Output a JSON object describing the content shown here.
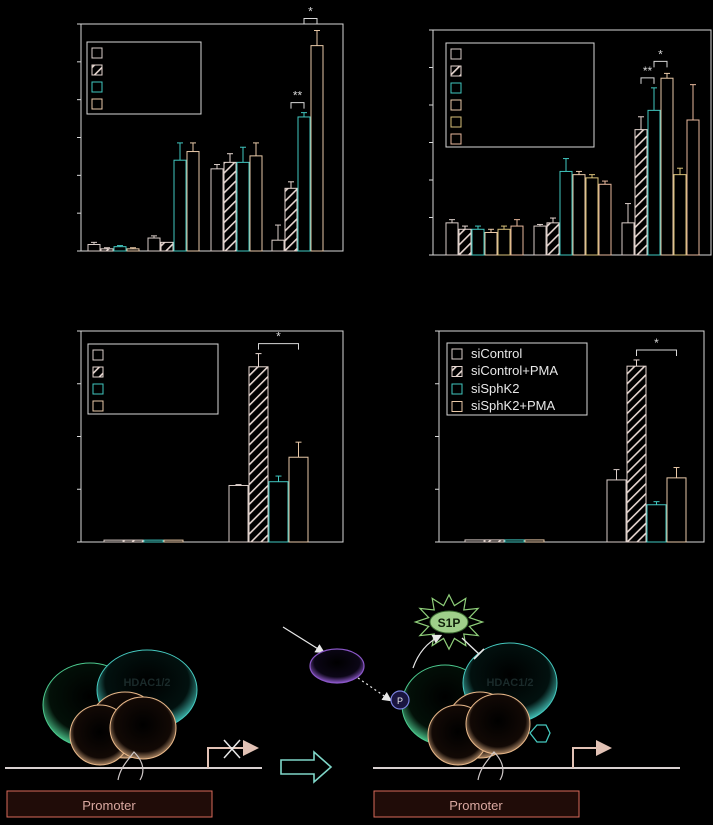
{
  "chart_data": [
    {
      "type": "bar",
      "groups": 4,
      "series": [
        {
          "values": [
            3,
            6,
            38,
            5
          ],
          "errors": [
            1,
            1,
            2,
            7
          ]
        },
        {
          "values": [
            1,
            4,
            41,
            29
          ],
          "errors": [
            0.5,
            0.3,
            4,
            3
          ]
        },
        {
          "values": [
            2,
            42,
            41,
            62
          ],
          "errors": [
            0.5,
            8,
            7,
            2
          ]
        },
        {
          "values": [
            1,
            46,
            44,
            95
          ],
          "errors": [
            0.5,
            4,
            6,
            7
          ]
        }
      ],
      "ylim": [
        0,
        105
      ],
      "significance": [
        {
          "label": "**",
          "from": [
            3,
            1
          ],
          "to": [
            3,
            2
          ]
        },
        {
          "label": "*",
          "from": [
            3,
            2
          ],
          "to": [
            3,
            3
          ]
        }
      ]
    },
    {
      "type": "bar",
      "groups": 3,
      "series": [
        {
          "values": [
            10,
            9,
            10
          ],
          "errors": [
            1,
            0.5,
            6
          ]
        },
        {
          "values": [
            8,
            10,
            39
          ],
          "errors": [
            1,
            1.5,
            4
          ]
        },
        {
          "values": [
            8,
            26,
            45
          ],
          "errors": [
            1,
            4,
            7
          ]
        },
        {
          "values": [
            7,
            25,
            55
          ],
          "errors": [
            1,
            1,
            1.5
          ]
        },
        {
          "values": [
            8,
            24,
            25
          ],
          "errors": [
            1,
            1,
            2
          ]
        },
        {
          "values": [
            9,
            22,
            42
          ],
          "errors": [
            2,
            1,
            11
          ]
        }
      ],
      "ylim": [
        0,
        70
      ],
      "significance": [
        {
          "label": "**",
          "from": [
            2,
            1
          ],
          "to": [
            2,
            2
          ]
        },
        {
          "label": "*",
          "from": [
            2,
            2
          ],
          "to": [
            2,
            3
          ]
        }
      ]
    },
    {
      "type": "bar",
      "groups": 2,
      "series": [
        {
          "values": [
            1,
            30
          ],
          "errors": [
            0.2,
            0.5
          ]
        },
        {
          "values": [
            1,
            93
          ],
          "errors": [
            0.2,
            7
          ]
        },
        {
          "values": [
            1,
            32
          ],
          "errors": [
            0.2,
            3
          ]
        },
        {
          "values": [
            1,
            45
          ],
          "errors": [
            0.2,
            8
          ]
        }
      ],
      "ylim": [
        0,
        112
      ],
      "significance": [
        {
          "label": "*",
          "from": [
            1,
            1
          ],
          "to": [
            1,
            3
          ]
        }
      ]
    },
    {
      "type": "bar",
      "groups": 2,
      "series": [
        {
          "name": "siControl",
          "values": [
            1,
            30
          ],
          "errors": [
            0.2,
            5
          ]
        },
        {
          "name": "siControl+PMA",
          "values": [
            1,
            85
          ],
          "errors": [
            0.2,
            3
          ]
        },
        {
          "name": "siSphK2",
          "values": [
            1,
            18
          ],
          "errors": [
            0.2,
            1.5
          ]
        },
        {
          "name": "siSphK2+PMA",
          "values": [
            1,
            31
          ],
          "errors": [
            0.2,
            5
          ]
        }
      ],
      "ylim": [
        0,
        102
      ],
      "significance": [
        {
          "label": "*",
          "from": [
            1,
            1
          ],
          "to": [
            1,
            3
          ]
        }
      ]
    }
  ],
  "diagram": {
    "s1p_label": "S1P",
    "hdac_left": "HDAC1/2",
    "hdac_right": "HDAC1/2",
    "phospho_label": "P",
    "promoter_left": "Promoter",
    "promoter_right": "Promoter"
  },
  "colors": {
    "series": [
      "#d9cdc8",
      "#e6d6d0",
      "#41c7c0",
      "#e9c9a8",
      "#d8c07a",
      "#e8b89c"
    ],
    "axis": "#d8d8d8",
    "hdac": "#45c8be",
    "nucleosome": "#e8b88a",
    "big_circle": "#4cc98e",
    "promoter_border": "#d96a5a",
    "promoter_bg": "#200c08",
    "arrow": "#7fd6c8",
    "sphk2": "#8b57c8",
    "s1p_fill": "#9fcf8a"
  }
}
